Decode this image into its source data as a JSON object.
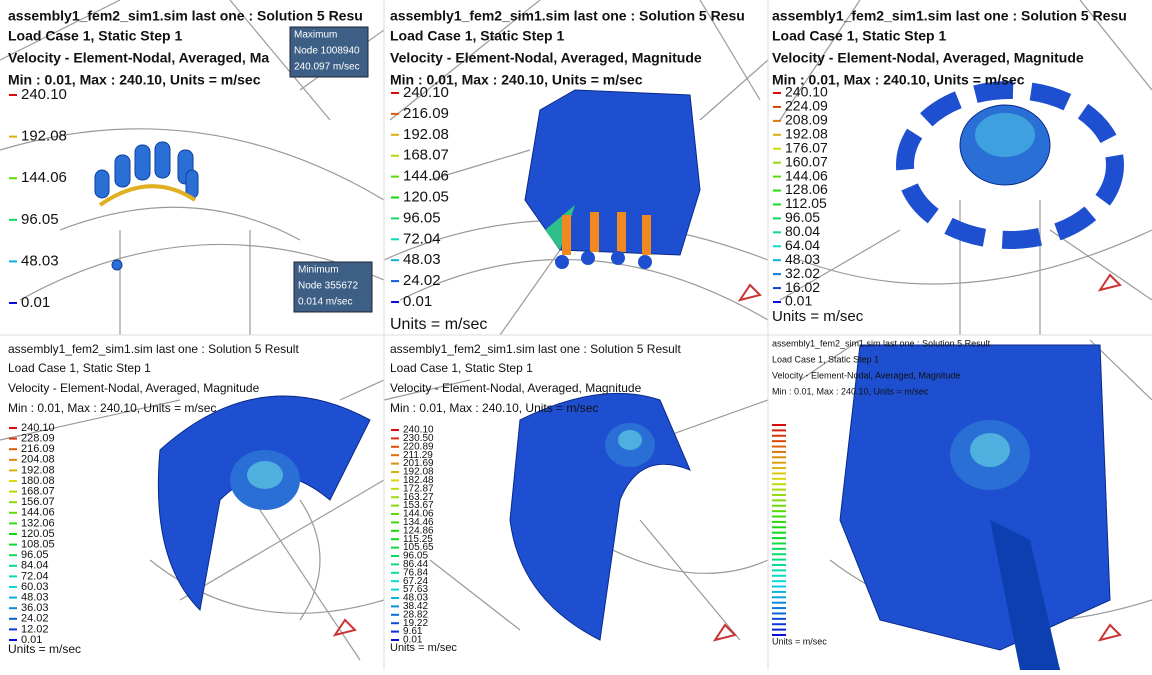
{
  "panels": [
    {
      "title": "assembly1_fem2_sim1.sim last one : Solution 5 Resu",
      "load_case": "Load Case 1, Static Step 1",
      "result": "Velocity - Element-Nodal, Averaged, Ma",
      "range": "Min : 0.01, Max : 240.10, Units = m/sec",
      "legend": [
        "240.10",
        "192.08",
        "144.06",
        "96.05",
        "48.03",
        "0.01"
      ],
      "callouts": [
        [
          "Maximum",
          "Node 1008940",
          "240.097 m/sec"
        ],
        [
          "Minimum",
          "Node 355672",
          "0.014 m/sec"
        ]
      ]
    },
    {
      "title": "assembly1_fem2_sim1.sim last one : Solution 5 Resu",
      "load_case": "Load Case 1, Static Step 1",
      "result": "Velocity - Element-Nodal, Averaged, Magnitude",
      "range": "Min : 0.01, Max : 240.10, Units = m/sec",
      "legend": [
        "240.10",
        "216.09",
        "192.08",
        "168.07",
        "144.06",
        "120.05",
        "96.05",
        "72.04",
        "48.03",
        "24.02",
        "0.01"
      ],
      "units": "Units = m/sec"
    },
    {
      "title": "assembly1_fem2_sim1.sim last one : Solution 5 Resu",
      "load_case": "Load Case 1, Static Step 1",
      "result": "Velocity - Element-Nodal, Averaged, Magnitude",
      "range": "Min : 0.01, Max : 240.10, Units = m/sec",
      "legend": [
        "240.10",
        "224.09",
        "208.09",
        "192.08",
        "176.07",
        "160.07",
        "144.06",
        "128.06",
        "112.05",
        "96.05",
        "80.04",
        "64.04",
        "48.03",
        "32.02",
        "16.02",
        "0.01"
      ],
      "units": "Units = m/sec"
    },
    {
      "title": "assembly1_fem2_sim1.sim last one : Solution 5 Result",
      "load_case": "Load Case 1, Static Step 1",
      "result": "Velocity - Element-Nodal, Averaged, Magnitude",
      "range": "Min : 0.01, Max : 240.10, Units = m/sec",
      "legend": [
        "240.10",
        "228.09",
        "216.09",
        "204.08",
        "192.08",
        "180.08",
        "168.07",
        "156.07",
        "144.06",
        "132.06",
        "120.05",
        "108.05",
        "96.05",
        "84.04",
        "72.04",
        "60.03",
        "48.03",
        "36.03",
        "24.02",
        "12.02",
        "0.01"
      ],
      "units": "Units = m/sec"
    },
    {
      "title": "assembly1_fem2_sim1.sim last one : Solution 5 Result",
      "load_case": "Load Case 1, Static Step 1",
      "result": "Velocity - Element-Nodal, Averaged, Magnitude",
      "range": "Min : 0.01, Max : 240.10, Units = m/sec",
      "legend": [
        "240.10",
        "230.50",
        "220.89",
        "211.29",
        "201.69",
        "192.08",
        "182.48",
        "172.87",
        "163.27",
        "153.67",
        "144.06",
        "134.46",
        "124.86",
        "115.25",
        "105.65",
        "96.05",
        "86.44",
        "76.84",
        "67.24",
        "57.63",
        "48.03",
        "38.42",
        "28.82",
        "19.22",
        "9.61",
        "0.01"
      ],
      "units": "Units = m/sec"
    },
    {
      "title": "assembly1_fem2_sim1.sim last one : Solution 5 Result",
      "load_case": "Load Case 1, Static Step 1",
      "result": "Velocity - Element-Nodal, Averaged, Magnitude",
      "range": "Min : 0.01, Max : 240.10, Units = m/sec",
      "units": "Units = m/sec"
    }
  ]
}
